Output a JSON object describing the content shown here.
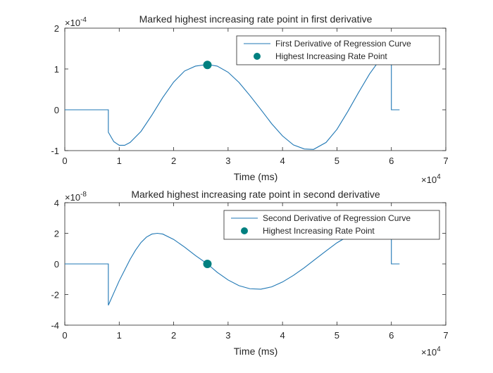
{
  "chart_data": [
    {
      "type": "line",
      "title": "Marked highest increasing rate point in first derivative",
      "xlabel": "Time (ms)",
      "ylabel": "",
      "xlim": [
        0,
        70000
      ],
      "ylim": [
        -0.0001,
        0.0002
      ],
      "xticks": [
        0,
        10000,
        20000,
        30000,
        40000,
        50000,
        60000,
        70000
      ],
      "xtick_labels": [
        "0",
        "1",
        "2",
        "3",
        "4",
        "5",
        "6",
        "7"
      ],
      "yticks": [
        -0.0001,
        0,
        0.0001,
        0.0002
      ],
      "ytick_labels": [
        "-1",
        "0",
        "1",
        "2"
      ],
      "x_multiplier": "×10^4",
      "y_multiplier": "×10^-4",
      "legend_position": "top-right",
      "grid": false,
      "series": [
        {
          "name": "First Derivative of Regression Curve",
          "color": "#1f77b4",
          "style": "line",
          "x": [
            0,
            8000,
            8000,
            9000,
            10000,
            11000,
            12000,
            14000,
            16000,
            18000,
            20000,
            22000,
            24000,
            26200,
            28000,
            30000,
            32000,
            34000,
            36000,
            38000,
            40000,
            42000,
            44000,
            45700,
            48000,
            50000,
            52000,
            54000,
            56000,
            58000,
            58000,
            60000,
            60000,
            61500
          ],
          "y": [
            0,
            0,
            -5.5e-05,
            -7.8e-05,
            -8.7e-05,
            -8.7e-05,
            -8e-05,
            -5.3e-05,
            -1.3e-05,
            3e-05,
            6.8e-05,
            9.5e-05,
            0.000107,
            0.000111,
            0.000107,
            9.2e-05,
            6.7e-05,
            3.5e-05,
            1e-06,
            -3.4e-05,
            -6.4e-05,
            -8.6e-05,
            -9.6e-05,
            -9.7e-05,
            -8e-05,
            -4.8e-05,
            -4e-06,
            4.3e-05,
            8.8e-05,
            0.000125,
            0.000125,
            0.000125,
            0,
            0
          ]
        },
        {
          "name": "Highest Increasing Rate Point",
          "color": "#008080",
          "style": "marker",
          "x": [
            26200
          ],
          "y": [
            0.00011
          ]
        }
      ]
    },
    {
      "type": "line",
      "title": "Marked highest increasing rate point in second derivative",
      "xlabel": "Time (ms)",
      "ylabel": "",
      "xlim": [
        0,
        70000
      ],
      "ylim": [
        -4e-08,
        4e-08
      ],
      "xticks": [
        0,
        10000,
        20000,
        30000,
        40000,
        50000,
        60000,
        70000
      ],
      "xtick_labels": [
        "0",
        "1",
        "2",
        "3",
        "4",
        "5",
        "6",
        "7"
      ],
      "yticks": [
        -4e-08,
        -2e-08,
        0,
        2e-08,
        4e-08
      ],
      "ytick_labels": [
        "-4",
        "-2",
        "0",
        "2",
        "4"
      ],
      "x_multiplier": "×10^4",
      "y_multiplier": "×10^-8",
      "legend_position": "top-right",
      "grid": false,
      "series": [
        {
          "name": "Second Derivative of Regression Curve",
          "color": "#1f77b4",
          "style": "line",
          "x": [
            0,
            8000,
            8000,
            9000,
            10000,
            11000,
            12000,
            13000,
            14000,
            15000,
            16000,
            17000,
            18000,
            20000,
            22000,
            24000,
            26200,
            28000,
            30000,
            32000,
            34000,
            36000,
            38000,
            40000,
            42000,
            44000,
            46000,
            48000,
            50000,
            52000,
            53000,
            58000,
            60000,
            60000,
            61500
          ],
          "y": [
            0,
            0,
            -2.7e-08,
            -1.9e-08,
            -1.1e-08,
            -4e-09,
            3e-09,
            9e-09,
            1.4e-08,
            1.75e-08,
            1.95e-08,
            2e-08,
            1.95e-08,
            1.6e-08,
            1.1e-08,
            5.5e-09,
            0,
            -5.5e-09,
            -1.05e-08,
            -1.42e-08,
            -1.62e-08,
            -1.65e-08,
            -1.5e-08,
            -1.18e-08,
            -7.5e-09,
            -2.5e-09,
            3e-09,
            8.5e-09,
            1.38e-08,
            1.8e-08,
            2e-08,
            2e-08,
            2e-08,
            0,
            0
          ]
        },
        {
          "name": "Highest Increasing Rate Point",
          "color": "#008080",
          "style": "marker",
          "x": [
            26200
          ],
          "y": [
            0
          ]
        }
      ]
    }
  ]
}
